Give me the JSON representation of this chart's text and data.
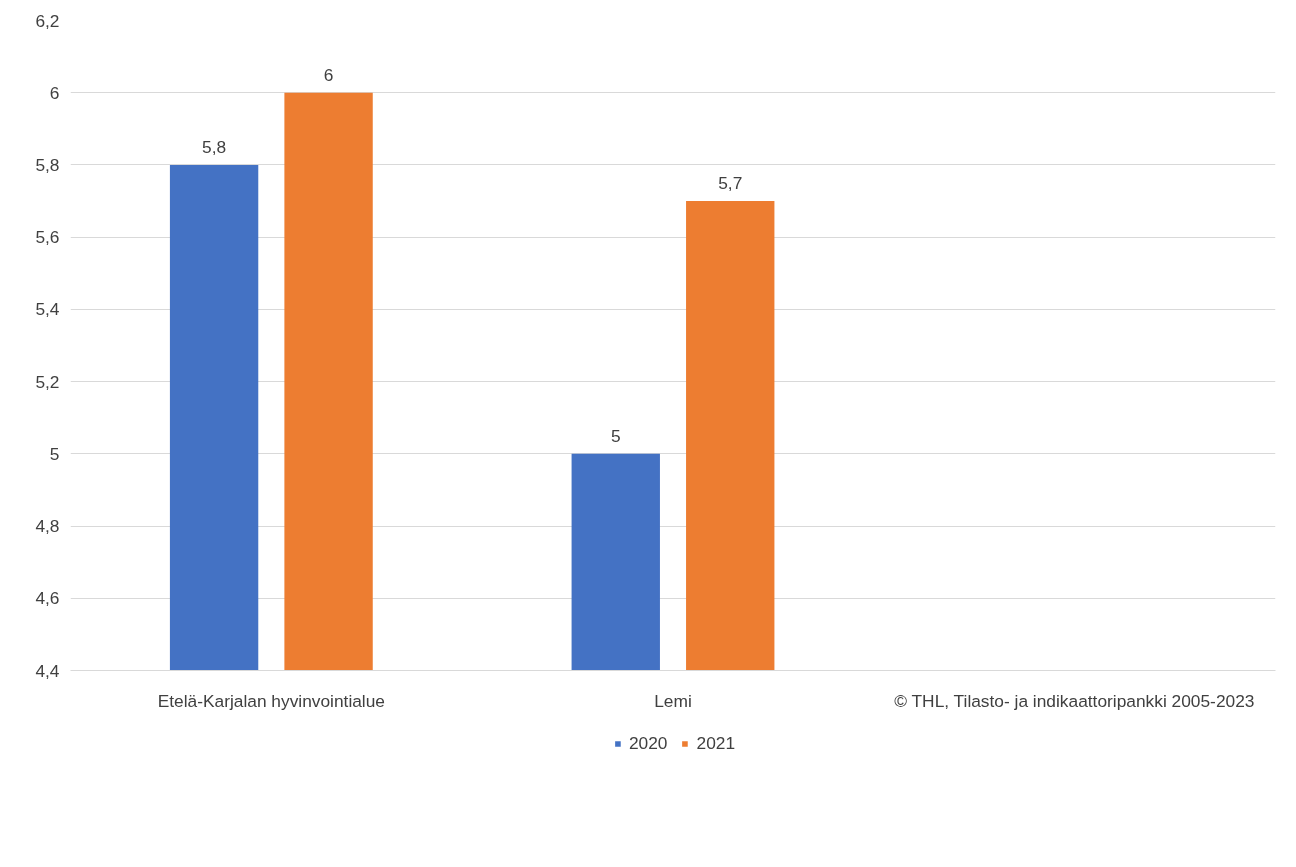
{
  "chart_data": {
    "type": "bar",
    "categories": [
      "Etelä-Karjalan hyvinvointialue",
      "Lemi",
      null
    ],
    "series": [
      {
        "name": "2020",
        "color": "#4472c4",
        "values": [
          5.8,
          5,
          null
        ],
        "value_labels": [
          "5,8",
          "5",
          null
        ]
      },
      {
        "name": "2021",
        "color": "#ed7d31",
        "values": [
          6,
          5.7,
          null
        ],
        "value_labels": [
          "6",
          "5,7",
          null
        ]
      }
    ],
    "ylim": [
      4.4,
      6.2
    ],
    "yticks": [
      {
        "value": 4.4,
        "label": "4,4"
      },
      {
        "value": 4.6,
        "label": "4,6"
      },
      {
        "value": 4.8,
        "label": "4,8"
      },
      5,
      {
        "value": 5.2,
        "label": "5,2"
      },
      {
        "value": 5.4,
        "label": "5,4"
      },
      {
        "value": 5.6,
        "label": "5,6"
      },
      {
        "value": 5.8,
        "label": "5,8"
      },
      6,
      {
        "value": 6.2,
        "label": "6,2"
      }
    ],
    "grid": "y",
    "legend": "bottom",
    "annotations": [
      "© THL, Tilasto- ja indikaattoripankki 2005-2023"
    ]
  }
}
